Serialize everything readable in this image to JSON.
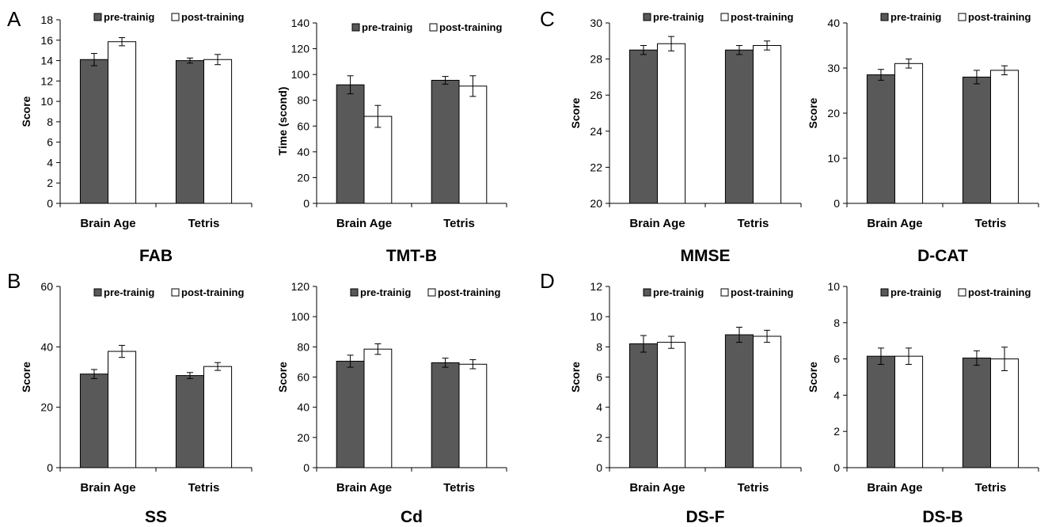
{
  "panel_letters": [
    "A",
    "B",
    "C",
    "D"
  ],
  "colors": {
    "pre": "#595959",
    "post": "#ffffff",
    "stroke": "#000000"
  },
  "chart_data": [
    {
      "type": "bar",
      "title": "FAB",
      "ylabel": "Score",
      "ylim": [
        0,
        18
      ],
      "ystep": 2,
      "categories": [
        "Brain Age",
        "Tetris"
      ],
      "series": [
        {
          "name": "pre-trainig",
          "values": [
            14.1,
            14.0
          ],
          "errors": [
            0.6,
            0.25
          ]
        },
        {
          "name": "post-training",
          "values": [
            15.85,
            14.1
          ],
          "errors": [
            0.4,
            0.5
          ]
        }
      ],
      "legend": "top"
    },
    {
      "type": "bar",
      "title": "TMT-B",
      "ylabel": "Time (scond)",
      "ylim": [
        0,
        140
      ],
      "ystep": 20,
      "categories": [
        "Brain Age",
        "Tetris"
      ],
      "series": [
        {
          "name": "pre-trainig",
          "values": [
            92,
            95.5
          ],
          "errors": [
            7,
            3
          ]
        },
        {
          "name": "post-training",
          "values": [
            67.5,
            91
          ],
          "errors": [
            8.5,
            8
          ]
        }
      ],
      "legend": "top"
    },
    {
      "type": "bar",
      "title": "MMSE",
      "ylabel": "Score",
      "ylim": [
        20,
        30
      ],
      "ystep": 2,
      "categories": [
        "Brain Age",
        "Tetris"
      ],
      "series": [
        {
          "name": "pre-trainig",
          "values": [
            28.5,
            28.5
          ],
          "errors": [
            0.25,
            0.25
          ]
        },
        {
          "name": "post-training",
          "values": [
            28.85,
            28.75
          ],
          "errors": [
            0.4,
            0.25
          ]
        }
      ],
      "legend": "top"
    },
    {
      "type": "bar",
      "title": "D-CAT",
      "ylabel": "Score",
      "ylim": [
        0,
        40
      ],
      "ystep": 10,
      "categories": [
        "Brain Age",
        "Tetris"
      ],
      "series": [
        {
          "name": "pre-trainig",
          "values": [
            28.5,
            28.0
          ],
          "errors": [
            1.2,
            1.5
          ]
        },
        {
          "name": "post-training",
          "values": [
            31.0,
            29.5
          ],
          "errors": [
            1.0,
            1.0
          ]
        }
      ],
      "legend": "top"
    },
    {
      "type": "bar",
      "title": "SS",
      "ylabel": "Score",
      "ylim": [
        0,
        60
      ],
      "ystep": 20,
      "categories": [
        "Brain Age",
        "Tetris"
      ],
      "series": [
        {
          "name": "pre-trainig",
          "values": [
            31,
            30.5
          ],
          "errors": [
            1.5,
            1
          ]
        },
        {
          "name": "post-training",
          "values": [
            38.5,
            33.5
          ],
          "errors": [
            2,
            1.3
          ]
        }
      ],
      "legend": "top"
    },
    {
      "type": "bar",
      "title": "Cd",
      "ylabel": "Score",
      "ylim": [
        0,
        120
      ],
      "ystep": 20,
      "categories": [
        "Brain Age",
        "Tetris"
      ],
      "series": [
        {
          "name": "pre-trainig",
          "values": [
            70.5,
            69.5
          ],
          "errors": [
            4,
            3
          ]
        },
        {
          "name": "post-training",
          "values": [
            78.5,
            68.5
          ],
          "errors": [
            3.5,
            3
          ]
        }
      ],
      "legend": "top"
    },
    {
      "type": "bar",
      "title": "DS-F",
      "ylabel": "Score",
      "ylim": [
        0,
        12
      ],
      "ystep": 2,
      "categories": [
        "Brain Age",
        "Tetris"
      ],
      "series": [
        {
          "name": "pre-trainig",
          "values": [
            8.2,
            8.8
          ],
          "errors": [
            0.55,
            0.5
          ]
        },
        {
          "name": "post-training",
          "values": [
            8.3,
            8.7
          ],
          "errors": [
            0.4,
            0.4
          ]
        }
      ],
      "legend": "top"
    },
    {
      "type": "bar",
      "title": "DS-B",
      "ylabel": "Score",
      "ylim": [
        0,
        10
      ],
      "ystep": 2,
      "categories": [
        "Brain Age",
        "Tetris"
      ],
      "series": [
        {
          "name": "pre-trainig",
          "values": [
            6.15,
            6.05
          ],
          "errors": [
            0.45,
            0.4
          ]
        },
        {
          "name": "post-training",
          "values": [
            6.15,
            6.0
          ],
          "errors": [
            0.45,
            0.65
          ]
        }
      ],
      "legend": "top"
    }
  ]
}
